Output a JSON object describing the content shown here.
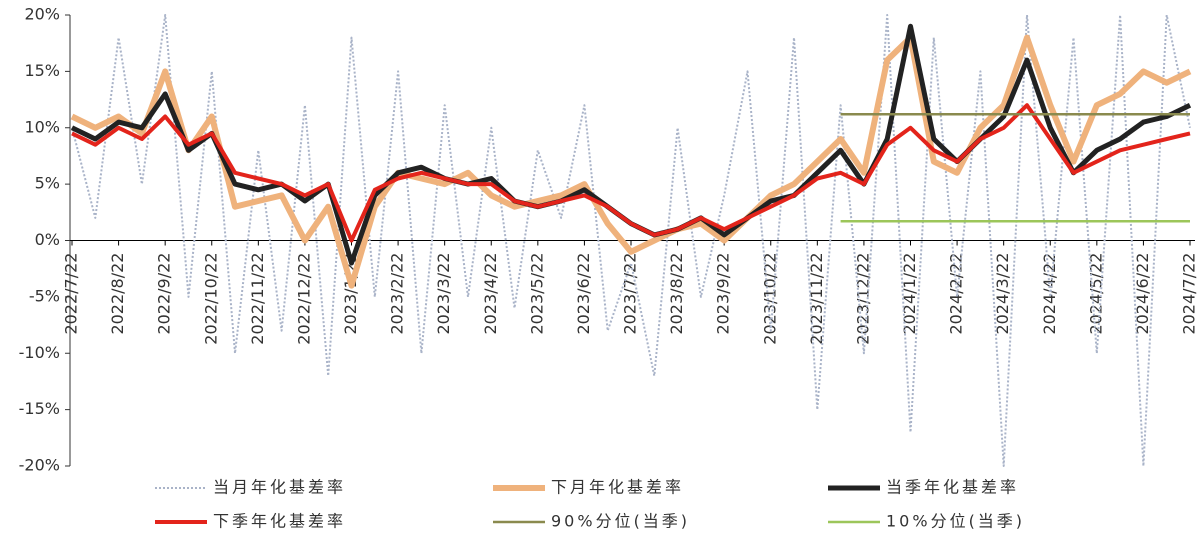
{
  "chart_data": {
    "type": "line",
    "categories": [
      "2022/7/22",
      null,
      "2022/8/22",
      null,
      "2022/9/22",
      null,
      "2022/10/22",
      null,
      "2022/11/22",
      null,
      "2022/12/22",
      null,
      "2023/1/22",
      null,
      "2023/2/22",
      null,
      "2023/3/22",
      null,
      "2023/4/22",
      null,
      "2023/5/22",
      null,
      "2023/6/22",
      null,
      "2023/7/22",
      null,
      "2023/8/22",
      null,
      "2023/9/22",
      null,
      "2023/10/22",
      null,
      "2023/11/22",
      null,
      "2023/12/22",
      null,
      "2024/1/22",
      null,
      "2024/2/22",
      null,
      "2024/3/22",
      null,
      "2024/4/22",
      null,
      "2024/5/22",
      null,
      "2024/6/22",
      null,
      "2024/7/22"
    ],
    "ylim": [
      -20,
      20
    ],
    "yticks": [
      {
        "value": -20,
        "label": "-20%"
      },
      {
        "value": -15,
        "label": "-15%"
      },
      {
        "value": -10,
        "label": "-10%"
      },
      {
        "value": -5,
        "label": "-5%"
      },
      {
        "value": 0,
        "label": "0%"
      },
      {
        "value": 5,
        "label": "5%"
      },
      {
        "value": 10,
        "label": "10%"
      },
      {
        "value": 15,
        "label": "15%"
      },
      {
        "value": 20,
        "label": "20%"
      }
    ],
    "series": [
      {
        "name": "当月年化基差率",
        "color": "#a9b3c8",
        "dash": true,
        "values": [
          10,
          2,
          18,
          5,
          20,
          -5,
          15,
          -10,
          8,
          -8,
          12,
          -12,
          18,
          -5,
          15,
          -10,
          12,
          -5,
          10,
          -6,
          8,
          2,
          12,
          -8,
          -2,
          -12,
          10,
          -5,
          4,
          15,
          -8,
          18,
          -15,
          12,
          -10,
          20,
          -17,
          18,
          -5,
          15,
          -20,
          20,
          -5,
          18,
          -10,
          20,
          -20,
          20,
          10
        ]
      },
      {
        "name": "下月年化基差率",
        "color": "#efb27c",
        "values": [
          11,
          10,
          11,
          9.5,
          15,
          8,
          11,
          3,
          3.5,
          4,
          0,
          3,
          -4,
          3,
          6,
          5.5,
          5,
          6,
          4,
          3,
          3.5,
          4,
          5,
          1.5,
          -1,
          0,
          1,
          1.5,
          0,
          2,
          4,
          5,
          7,
          9,
          6,
          16,
          18,
          7,
          6,
          10,
          12,
          18,
          12,
          7,
          12,
          13,
          15,
          14,
          15
        ]
      },
      {
        "name": "当季年化基差率",
        "color": "#222222",
        "values": [
          10,
          9,
          10.5,
          10,
          13,
          8,
          9.5,
          5,
          4.5,
          5,
          3.5,
          5,
          -2,
          4,
          6,
          6.5,
          5.5,
          5,
          5.5,
          3.5,
          3,
          3.5,
          4.5,
          3,
          1.5,
          0.5,
          1,
          2,
          0.5,
          2,
          3.5,
          4,
          6,
          8,
          5,
          9,
          19,
          9,
          7,
          9,
          11,
          16,
          10,
          6,
          8,
          9,
          10.5,
          11,
          12
        ]
      },
      {
        "name": "下季年化基差率",
        "color": "#e3241b",
        "values": [
          9.5,
          8.5,
          10,
          9,
          11,
          8.5,
          9.5,
          6,
          5.5,
          5,
          4,
          5,
          0,
          4.5,
          5.5,
          6,
          5.5,
          5,
          5,
          3.5,
          3,
          3.5,
          4,
          3,
          1.5,
          0.5,
          1,
          2,
          1,
          2,
          3,
          4,
          5.5,
          6,
          5,
          8.5,
          10,
          8,
          7,
          9,
          10,
          12,
          9,
          6,
          7,
          8,
          8.5,
          9,
          9.5
        ]
      },
      {
        "name": "90%分位(当季)",
        "color": "#8a8a4e",
        "values": [
          null,
          null,
          null,
          null,
          null,
          null,
          null,
          null,
          null,
          null,
          null,
          null,
          null,
          null,
          null,
          null,
          null,
          null,
          null,
          null,
          null,
          null,
          null,
          null,
          null,
          null,
          null,
          null,
          null,
          null,
          null,
          null,
          null,
          11.2,
          11.2,
          11.2,
          11.2,
          11.2,
          11.2,
          11.2,
          11.2,
          11.2,
          11.2,
          11.2,
          11.2,
          11.2,
          11.2,
          11.2,
          11.2
        ]
      },
      {
        "name": "10%分位(当季)",
        "color": "#9cc65a",
        "values": [
          null,
          null,
          null,
          null,
          null,
          null,
          null,
          null,
          null,
          null,
          null,
          null,
          null,
          null,
          null,
          null,
          null,
          null,
          null,
          null,
          null,
          null,
          null,
          null,
          null,
          null,
          null,
          null,
          null,
          null,
          null,
          null,
          null,
          1.7,
          1.7,
          1.7,
          1.7,
          1.7,
          1.7,
          1.7,
          1.7,
          1.7,
          1.7,
          1.7,
          1.7,
          1.7,
          1.7,
          1.7,
          1.7
        ]
      }
    ]
  }
}
